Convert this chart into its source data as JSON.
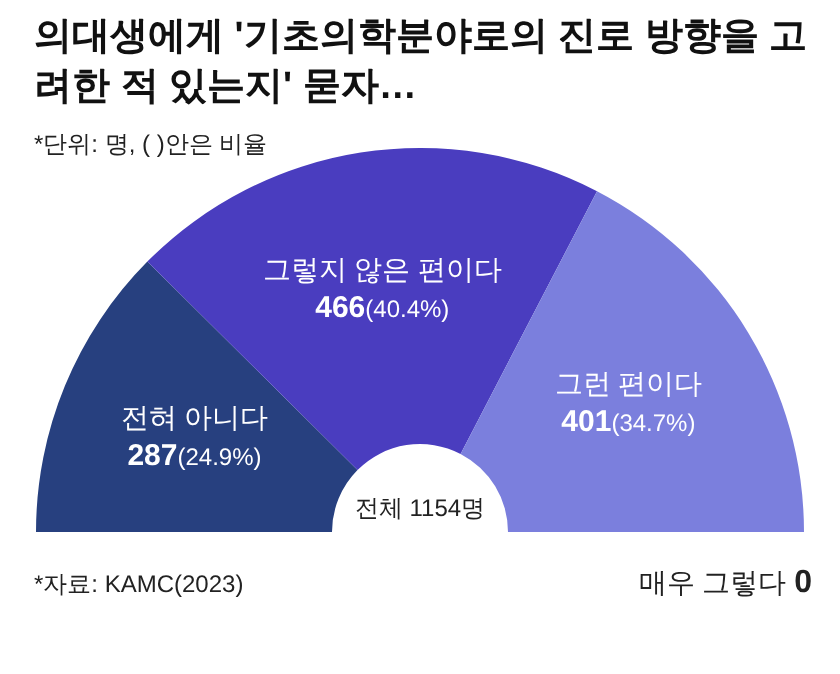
{
  "chart_data": {
    "type": "donut",
    "title": "의대생에게 '기초의학분야로의 진로 방향을 고려한 적 있는지' 묻자…",
    "subtitle": "*단위: 명, ( )안은 비율",
    "categories": [
      "전혀 아니다",
      "그렇지 않은 편이다",
      "그런 편이다",
      "매우 그렇다"
    ],
    "values": [
      287,
      466,
      401,
      0
    ],
    "value_labels": [
      "287(24.9%)",
      "466(40.4%)",
      "401(34.7%)",
      "0"
    ],
    "colors": [
      "#27407f",
      "#4a3dbf",
      "#7b7fdd",
      "#b0b3ee"
    ],
    "annotations": [
      "전체 1154명",
      "*자료: KAMC(2023)"
    ]
  }
}
